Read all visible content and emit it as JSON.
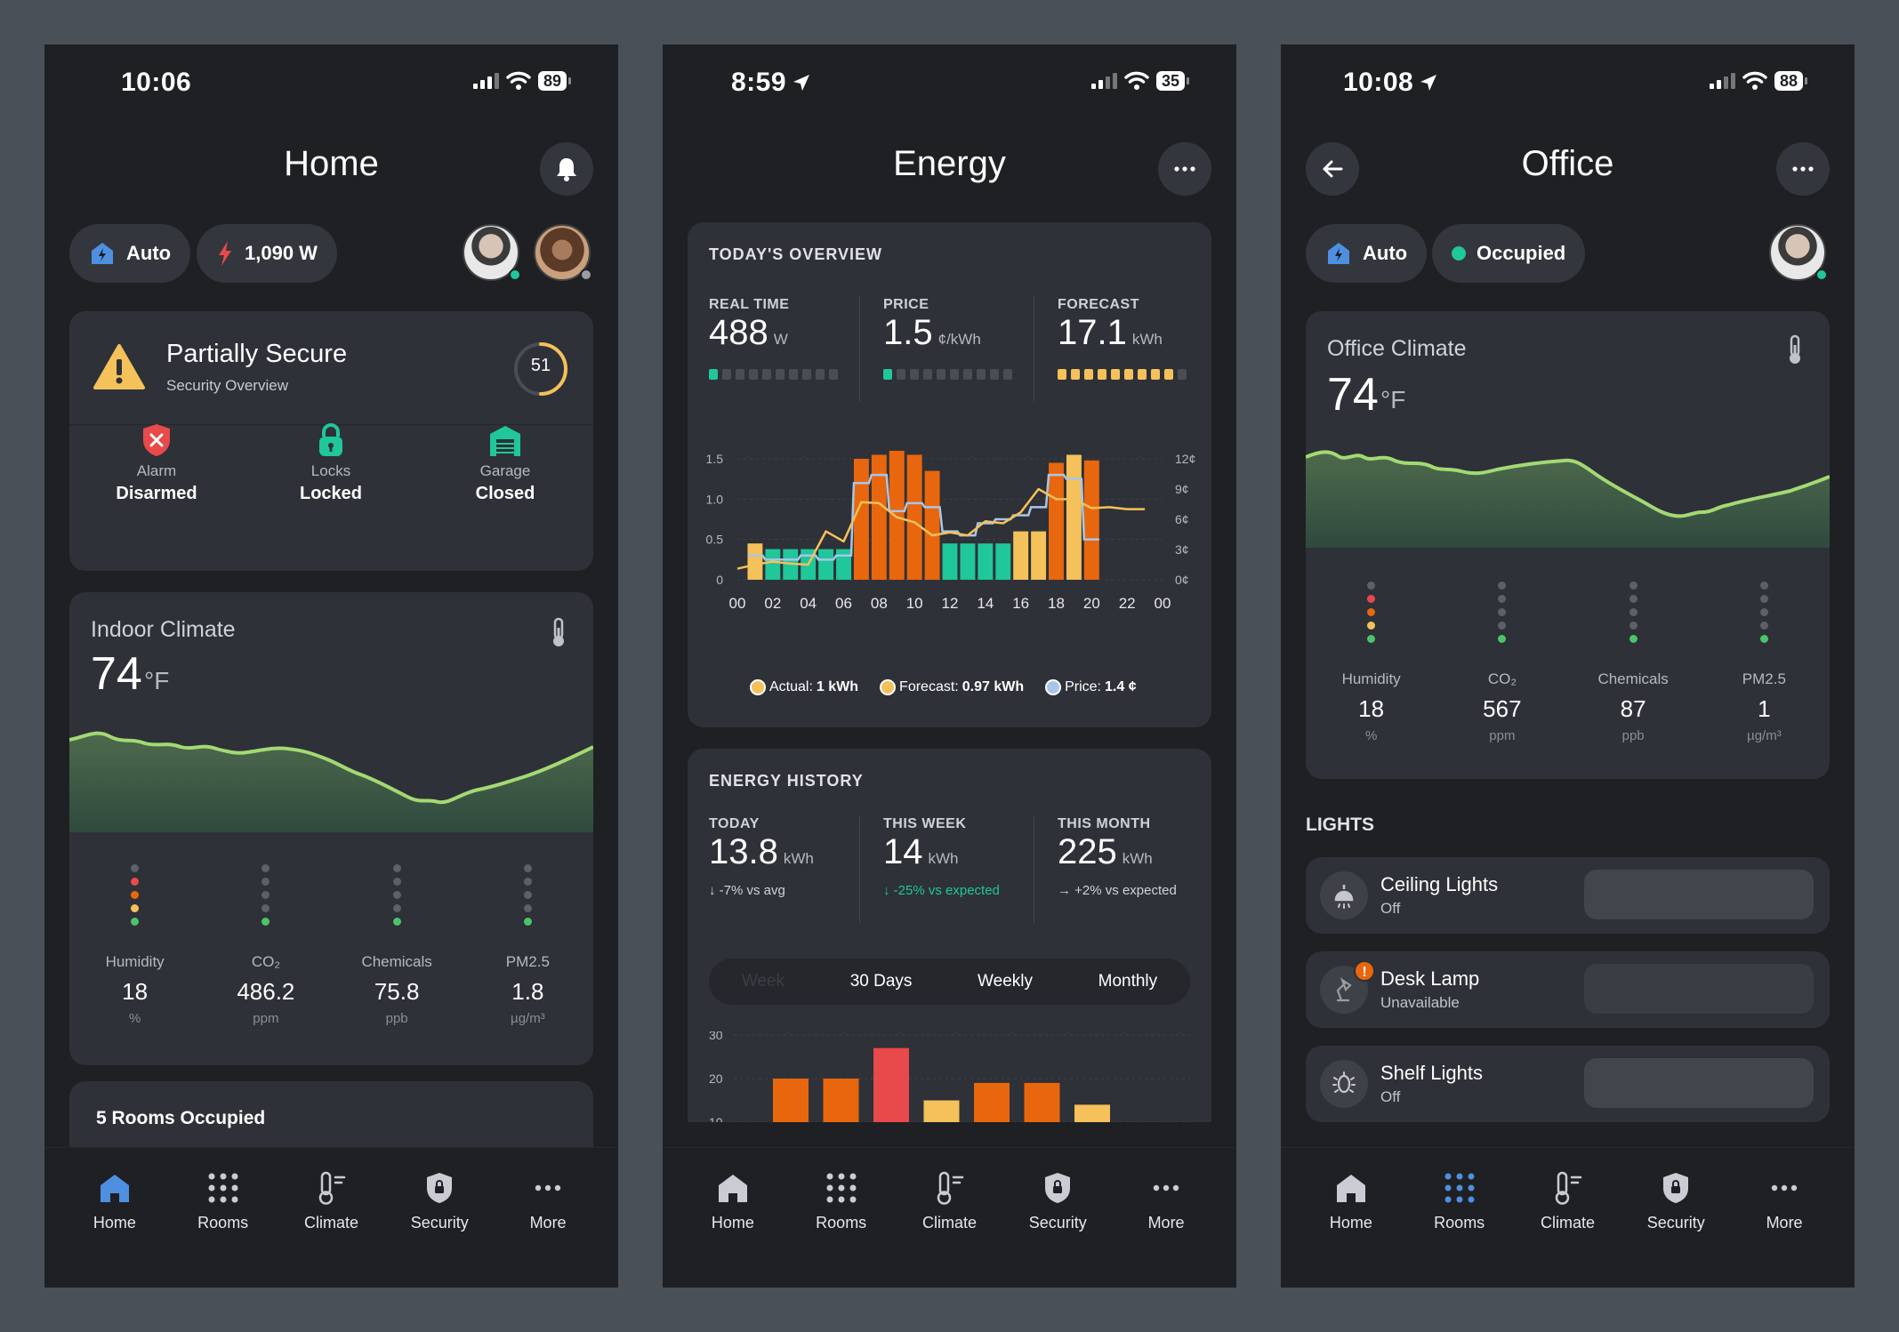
{
  "home": {
    "status": {
      "time": "10:06",
      "battery": "89"
    },
    "title": "Home",
    "mode_label": "Auto",
    "power_label": "1,090 W",
    "security": {
      "title": "Partially Secure",
      "subtitle": "Security Overview",
      "score": "51",
      "items": [
        {
          "label": "Alarm",
          "value": "Disarmed",
          "icon": "shield-x-icon",
          "color": "#e8494a"
        },
        {
          "label": "Locks",
          "value": "Locked",
          "icon": "lock-icon",
          "color": "#1fc79a"
        },
        {
          "label": "Garage",
          "value": "Closed",
          "icon": "garage-icon",
          "color": "#1fc79a"
        }
      ]
    },
    "climate": {
      "title": "Indoor Climate",
      "temp": "74",
      "unit": "°F",
      "metrics": [
        {
          "name": "Humidity",
          "value": "18",
          "unit": "%"
        },
        {
          "name": "CO₂",
          "value": "486.2",
          "unit": "ppm"
        },
        {
          "name": "Chemicals",
          "value": "75.8",
          "unit": "ppb"
        },
        {
          "name": "PM2.5",
          "value": "1.8",
          "unit": "µg/m³"
        }
      ]
    },
    "rooms_occupied": "5 Rooms Occupied"
  },
  "energy": {
    "status": {
      "time": "8:59",
      "battery": "35"
    },
    "title": "Energy",
    "overview": {
      "heading": "TODAY'S OVERVIEW",
      "kpis": [
        {
          "label": "REAL TIME",
          "value": "488",
          "unit": "W"
        },
        {
          "label": "PRICE",
          "value": "1.5",
          "unit": "¢/kWh"
        },
        {
          "label": "FORECAST",
          "value": "17.1",
          "unit": "kWh"
        }
      ],
      "legend": [
        {
          "name": "Actual:",
          "value": "1 kWh",
          "color": "#f5c15a"
        },
        {
          "name": "Forecast:",
          "value": "0.97 kWh",
          "color": "#f5c15a"
        },
        {
          "name": "Price:",
          "value": "1.4 ¢",
          "color": "#a9c6ea"
        }
      ]
    },
    "history": {
      "heading": "ENERGY HISTORY",
      "kpis": [
        {
          "label": "TODAY",
          "value": "13.8",
          "unit": "kWh",
          "delta": "↓ -7% vs avg"
        },
        {
          "label": "THIS WEEK",
          "value": "14",
          "unit": "kWh",
          "delta": "↓ -25% vs expected"
        },
        {
          "label": "THIS MONTH",
          "value": "225",
          "unit": "kWh",
          "delta": "→ +2% vs expected"
        }
      ],
      "tabs": [
        "Week",
        "30 Days",
        "Weekly",
        "Monthly"
      ]
    }
  },
  "office": {
    "status": {
      "time": "10:08",
      "battery": "88"
    },
    "title": "Office",
    "mode_label": "Auto",
    "occupancy_label": "Occupied",
    "climate": {
      "title": "Office Climate",
      "temp": "74",
      "unit": "°F",
      "metrics": [
        {
          "name": "Humidity",
          "value": "18",
          "unit": "%"
        },
        {
          "name": "CO₂",
          "value": "567",
          "unit": "ppm"
        },
        {
          "name": "Chemicals",
          "value": "87",
          "unit": "ppb"
        },
        {
          "name": "PM2.5",
          "value": "1",
          "unit": "µg/m³"
        }
      ]
    },
    "lights_heading": "LIGHTS",
    "lights": [
      {
        "name": "Ceiling Lights",
        "state": "Off",
        "icon": "ceiling-light-icon"
      },
      {
        "name": "Desk Lamp",
        "state": "Unavailable",
        "icon": "desk-lamp-icon"
      },
      {
        "name": "Shelf Lights",
        "state": "Off",
        "icon": "shelf-light-icon"
      }
    ]
  },
  "nav": [
    "Home",
    "Rooms",
    "Climate",
    "Security",
    "More"
  ],
  "chart_data": [
    {
      "type": "bar",
      "title": "TODAY'S OVERVIEW",
      "x_ticks": [
        "00",
        "02",
        "04",
        "06",
        "08",
        "10",
        "12",
        "14",
        "16",
        "18",
        "20",
        "22",
        "00"
      ],
      "y_left_ticks": [
        "1.5",
        "1.0",
        "0.5",
        "0"
      ],
      "y_right_ticks": [
        "12¢",
        "9¢",
        "6¢",
        "3¢",
        "0¢"
      ],
      "ylim": [
        0,
        1.5
      ],
      "y2lim": [
        0,
        12
      ],
      "series": [
        {
          "name": "Actual",
          "hours": [
            1,
            2,
            3,
            4,
            5,
            6,
            7,
            8,
            9,
            10,
            11,
            12,
            13,
            14,
            15,
            16,
            17,
            18,
            19,
            20
          ],
          "values": [
            0.45,
            0.38,
            0.38,
            0.38,
            0.38,
            0.38,
            1.5,
            1.55,
            1.6,
            1.55,
            1.35,
            0.45,
            0.45,
            0.45,
            0.45,
            0.6,
            0.6,
            1.45,
            1.55,
            1.48
          ],
          "colors": [
            "#f5c15a",
            "#1fc79a",
            "#1fc79a",
            "#1fc79a",
            "#1fc79a",
            "#1fc79a",
            "#e8670e",
            "#e8670e",
            "#e8670e",
            "#e8670e",
            "#e8670e",
            "#1fc79a",
            "#1fc79a",
            "#1fc79a",
            "#1fc79a",
            "#f5c15a",
            "#f5c15a",
            "#e8670e",
            "#f5c15a",
            "#e8670e"
          ]
        },
        {
          "name": "Forecast",
          "values": [
            0.3,
            0.25,
            0.25,
            0.3,
            0.25,
            0.3,
            1.2,
            1.3,
            0.85,
            0.95,
            0.9,
            0.6,
            0.55,
            0.7,
            0.75,
            0.8,
            0.9,
            1.3,
            1.25,
            0.5
          ]
        },
        {
          "name": "Price",
          "hours": [
            0,
            1,
            2,
            3,
            4,
            5,
            6,
            7,
            8,
            9,
            10,
            11,
            12,
            13,
            14,
            15,
            16,
            17,
            18,
            19,
            20,
            21,
            22,
            23
          ],
          "values": [
            1.1,
            1.5,
            1.8,
            1.6,
            1.5,
            4.8,
            3.8,
            7.7,
            7.6,
            6.2,
            5.7,
            4.4,
            4.7,
            4.4,
            5.8,
            5.6,
            6.7,
            9.0,
            8.0,
            8.0,
            7.1,
            7.2,
            7.0,
            7.0
          ]
        }
      ]
    },
    {
      "type": "bar",
      "title": "ENERGY HISTORY",
      "y_ticks": [
        "30",
        "20",
        "10"
      ],
      "values": [
        20,
        20,
        27,
        15,
        19,
        19,
        14
      ],
      "colors": [
        "#e8670e",
        "#e8670e",
        "#e8494a",
        "#f5c15a",
        "#e8670e",
        "#e8670e",
        "#f5c15a"
      ]
    }
  ]
}
